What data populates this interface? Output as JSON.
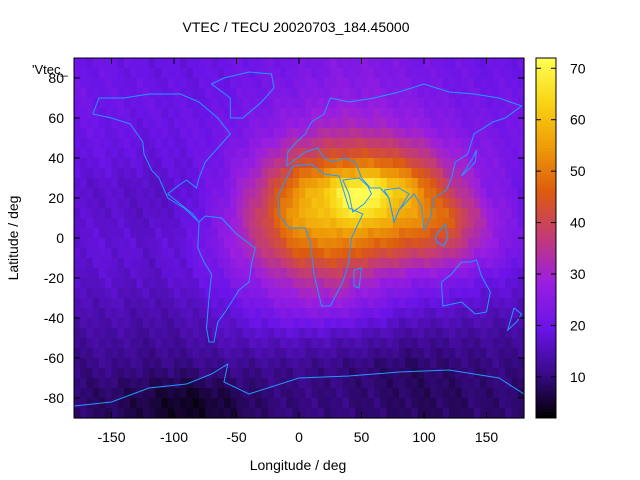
{
  "chart_data": {
    "type": "heatmap",
    "title": "VTEC / TECU 20020703_184.45000",
    "xlabel": "Longitude / deg",
    "ylabel": "Latitude / deg",
    "key_label": "'Vtec_",
    "xlim": [
      -180,
      180
    ],
    "ylim": [
      -90,
      90
    ],
    "x_ticks": [
      -150,
      -100,
      -50,
      0,
      50,
      100,
      150
    ],
    "y_ticks": [
      -80,
      -60,
      -40,
      -20,
      0,
      20,
      40,
      60,
      80
    ],
    "colorbar": {
      "range": [
        2,
        72
      ],
      "ticks": [
        10,
        20,
        30,
        40,
        50,
        60,
        70
      ],
      "palette": [
        "#000000",
        "#3a0a8a",
        "#6a14e8",
        "#9a1ee0",
        "#c23a78",
        "#dc5a10",
        "#ee9a08",
        "#f8d414",
        "#ffff55"
      ]
    },
    "coastline_color": "#2299ff",
    "grid": false,
    "peak": {
      "lon": 45,
      "lat": 18,
      "value": 71
    },
    "background_value": 20,
    "lon_centers": [
      -180,
      -150,
      -120,
      -90,
      -60,
      -30,
      0,
      30,
      60,
      90,
      120,
      150,
      180
    ],
    "lat_centers": [
      85,
      70,
      55,
      40,
      25,
      10,
      -5,
      -20,
      -35,
      -50,
      -65,
      -80
    ],
    "values": [
      [
        20,
        20,
        19,
        19,
        20,
        21,
        22,
        24,
        24,
        22,
        21,
        20,
        20
      ],
      [
        21,
        20,
        20,
        19,
        20,
        22,
        24,
        26,
        26,
        24,
        22,
        21,
        21
      ],
      [
        20,
        20,
        19,
        20,
        21,
        24,
        28,
        32,
        31,
        28,
        24,
        22,
        21
      ],
      [
        19,
        19,
        18,
        19,
        22,
        29,
        40,
        45,
        46,
        40,
        30,
        24,
        21
      ],
      [
        17,
        17,
        16,
        18,
        23,
        36,
        54,
        64,
        70,
        58,
        38,
        25,
        20
      ],
      [
        17,
        17,
        16,
        18,
        25,
        40,
        58,
        60,
        60,
        55,
        48,
        30,
        20
      ],
      [
        18,
        18,
        17,
        19,
        25,
        36,
        48,
        50,
        46,
        42,
        38,
        28,
        21
      ],
      [
        16,
        17,
        16,
        18,
        22,
        28,
        34,
        36,
        30,
        26,
        24,
        20,
        18
      ],
      [
        14,
        15,
        14,
        15,
        18,
        22,
        26,
        26,
        22,
        18,
        17,
        16,
        15
      ],
      [
        12,
        13,
        12,
        13,
        15,
        16,
        16,
        15,
        14,
        12,
        12,
        12,
        12
      ],
      [
        10,
        11,
        10,
        10,
        11,
        11,
        11,
        10,
        9,
        8,
        9,
        10,
        10
      ],
      [
        9,
        8,
        6,
        4,
        6,
        9,
        10,
        10,
        9,
        8,
        8,
        9,
        9
      ]
    ]
  }
}
